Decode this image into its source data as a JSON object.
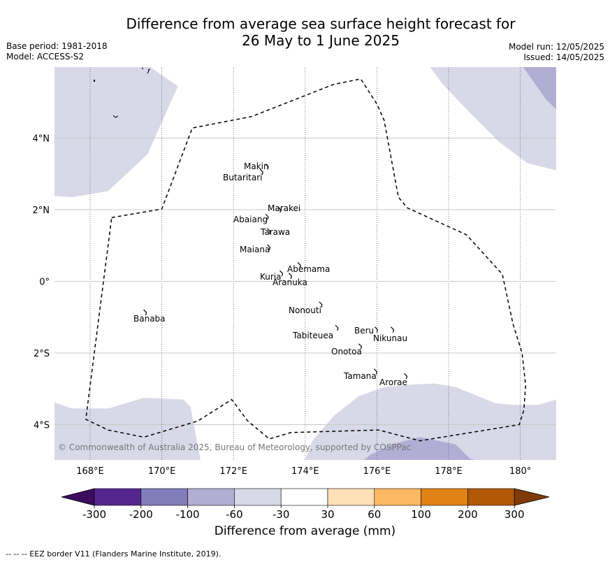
{
  "title_line1": "Difference from average sea surface height forecast for",
  "title_line2": "26 May to 1 June 2025",
  "base_period": "Base period: 1981-2018",
  "model": "Model: ACCESS-S2",
  "model_run": "Model run: 12/05/2025",
  "issued": "Issued: 14/05/2025",
  "copyright": "© Commonwealth of Australia 2025, Bureau of Meteorology, supported by COSPPac",
  "colorbar_title": "Difference from average (mm)",
  "footer": "--  --  -- EEZ border V11 (Flanders Marine Institute, 2019).",
  "map": {
    "lon_range": [
      167,
      181
    ],
    "lat_range": [
      -5,
      6
    ],
    "lon_ticks": [
      {
        "value": 168,
        "label": "168°E"
      },
      {
        "value": 170,
        "label": "170°E"
      },
      {
        "value": 172,
        "label": "172°E"
      },
      {
        "value": 174,
        "label": "174°E"
      },
      {
        "value": 176,
        "label": "176°E"
      },
      {
        "value": 178,
        "label": "178°E"
      },
      {
        "value": 180,
        "label": "180°"
      }
    ],
    "lat_ticks": [
      {
        "value": 4,
        "label": "4°N"
      },
      {
        "value": 2,
        "label": "2°N"
      },
      {
        "value": 0,
        "label": "0°"
      },
      {
        "value": -2,
        "label": "2°S"
      },
      {
        "value": -4,
        "label": "4°S"
      }
    ],
    "islands": [
      {
        "name": "Makin",
        "lon": 172.95,
        "lat": 3.2
      },
      {
        "name": "Butaritari",
        "lon": 172.8,
        "lat": 3.05
      },
      {
        "name": "Marakei",
        "lon": 173.3,
        "lat": 2.0
      },
      {
        "name": "Abaiang",
        "lon": 172.95,
        "lat": 1.8
      },
      {
        "name": "Tarawa",
        "lon": 173.0,
        "lat": 1.4
      },
      {
        "name": "Maiana",
        "lon": 173.0,
        "lat": 0.95
      },
      {
        "name": "Abemama",
        "lon": 173.85,
        "lat": 0.45
      },
      {
        "name": "Kuria",
        "lon": 173.35,
        "lat": 0.22
      },
      {
        "name": "Aranuka",
        "lon": 173.6,
        "lat": 0.15
      },
      {
        "name": "Nonouti",
        "lon": 174.45,
        "lat": -0.65
      },
      {
        "name": "Banaba",
        "lon": 169.55,
        "lat": -0.87
      },
      {
        "name": "Tabiteuea",
        "lon": 174.9,
        "lat": -1.3
      },
      {
        "name": "Beru",
        "lon": 176.0,
        "lat": -1.35
      },
      {
        "name": "Nikunau",
        "lon": 176.45,
        "lat": -1.35
      },
      {
        "name": "Onotoa",
        "lon": 175.55,
        "lat": -1.82
      },
      {
        "name": "Tamana",
        "lon": 175.98,
        "lat": -2.52
      },
      {
        "name": "Arorae",
        "lon": 176.82,
        "lat": -2.65
      }
    ],
    "eez_border": [
      [
        168.6,
        1.78
      ],
      [
        170.0,
        2.02
      ],
      [
        170.85,
        4.28
      ],
      [
        172.5,
        4.6
      ],
      [
        174.8,
        5.5
      ],
      [
        175.55,
        5.65
      ],
      [
        176.0,
        4.95
      ],
      [
        176.2,
        4.5
      ],
      [
        176.6,
        2.35
      ],
      [
        176.85,
        2.05
      ],
      [
        178.5,
        1.3
      ],
      [
        179.5,
        0.2
      ],
      [
        179.8,
        -1.2
      ],
      [
        180.05,
        -2.0
      ],
      [
        180.15,
        -2.9
      ],
      [
        180.1,
        -3.6
      ],
      [
        179.97,
        -4.0
      ],
      [
        177.2,
        -4.45
      ],
      [
        176.05,
        -4.15
      ],
      [
        175.0,
        -4.18
      ],
      [
        173.6,
        -4.22
      ],
      [
        173.0,
        -4.4
      ],
      [
        172.4,
        -3.9
      ],
      [
        171.95,
        -3.3
      ],
      [
        171.0,
        -3.9
      ],
      [
        169.5,
        -4.35
      ],
      [
        168.5,
        -4.15
      ],
      [
        167.88,
        -3.85
      ],
      [
        168.6,
        1.78
      ]
    ],
    "shaded_regions": [
      {
        "level": "-60 to -30",
        "color": "#d8d8e9",
        "polygon": [
          [
            167,
            2.38
          ],
          [
            167.5,
            2.35
          ],
          [
            168.5,
            2.52
          ],
          [
            169.6,
            3.55
          ],
          [
            170.45,
            5.45
          ],
          [
            169.5,
            6.1
          ],
          [
            167,
            6.1
          ]
        ]
      },
      {
        "level": "-60 to -30",
        "color": "#d8d8e9",
        "polygon": [
          [
            177.4,
            6.1
          ],
          [
            177.8,
            5.55
          ],
          [
            178.5,
            4.8
          ],
          [
            179.4,
            3.9
          ],
          [
            180.2,
            3.3
          ],
          [
            181,
            3.1
          ],
          [
            181,
            6.1
          ]
        ]
      },
      {
        "level": "-100 to -60",
        "color": "#b2aed3",
        "polygon": [
          [
            180.0,
            6.1
          ],
          [
            180.35,
            5.6
          ],
          [
            180.7,
            5.1
          ],
          [
            181,
            4.8
          ],
          [
            181,
            6.1
          ]
        ]
      },
      {
        "level": "-60 to -30",
        "color": "#d8d8e9",
        "polygon": [
          [
            167,
            -3.38
          ],
          [
            167.5,
            -3.55
          ],
          [
            168.5,
            -3.55
          ],
          [
            169.5,
            -3.25
          ],
          [
            170.6,
            -3.3
          ],
          [
            170.8,
            -3.5
          ],
          [
            171.1,
            -5.1
          ],
          [
            167,
            -5.1
          ]
        ]
      },
      {
        "level": "-60 to -30",
        "color": "#d8d8e9",
        "polygon": [
          [
            173.95,
            -5.1
          ],
          [
            174.2,
            -4.45
          ],
          [
            174.8,
            -3.75
          ],
          [
            175.5,
            -3.2
          ],
          [
            176.2,
            -2.95
          ],
          [
            177.0,
            -2.88
          ],
          [
            177.6,
            -2.85
          ],
          [
            178.2,
            -2.95
          ],
          [
            179.3,
            -3.4
          ],
          [
            179.8,
            -3.45
          ],
          [
            180.5,
            -3.45
          ],
          [
            181,
            -3.3
          ],
          [
            181,
            -5.1
          ]
        ]
      },
      {
        "level": "-100 to -60",
        "color": "#b2aed3",
        "polygon": [
          [
            175.5,
            -5.1
          ],
          [
            175.8,
            -4.85
          ],
          [
            176.4,
            -4.55
          ],
          [
            177.2,
            -4.35
          ],
          [
            178.2,
            -4.55
          ],
          [
            178.6,
            -4.95
          ],
          [
            179.2,
            -5.1
          ]
        ]
      }
    ]
  },
  "colorbar": {
    "colors": [
      "#3d0b5f",
      "#54278f",
      "#807dba",
      "#b2aed3",
      "#d8d8e9",
      "#ffffff",
      "#fee0b6",
      "#fdb863",
      "#e08214",
      "#b35806",
      "#7f3b08"
    ],
    "labels": [
      "-300",
      "-200",
      "-100",
      "-60",
      "-30",
      "30",
      "60",
      "100",
      "200",
      "300"
    ]
  }
}
